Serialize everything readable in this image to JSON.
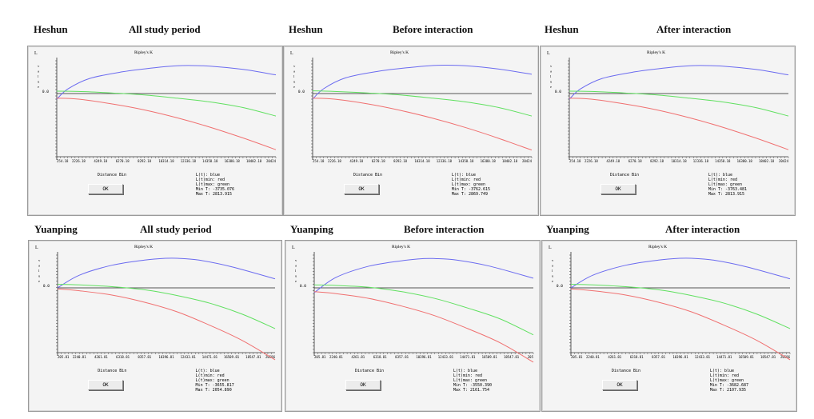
{
  "chart_data": [
    {
      "type": "line",
      "site": "Heshun",
      "period": "All study period",
      "title": "Ripley's K",
      "ylabel": "L value",
      "xlabel": "Distance Bin",
      "zero_tick": "0.0",
      "tick_labels": [
        "254.18",
        "2226.18",
        "4249.18",
        "6270.18",
        "8292.18",
        "10314.18",
        "12336.18",
        "14358.18",
        "16380.18",
        "18402.18",
        "20424"
      ],
      "legend": [
        "L(t): blue",
        "L(t)min: red",
        "L(t)max: green"
      ],
      "min_t": "-3735.076",
      "max_t": "2813.915",
      "button": "OK",
      "series": [
        {
          "name": "L(t)",
          "color": "#6b6bf0",
          "x": [
            0,
            0.05,
            0.15,
            0.3,
            0.45,
            0.55,
            0.6,
            0.7,
            0.85,
            1
          ],
          "values": [
            -0.12,
            0.15,
            0.5,
            0.72,
            0.86,
            0.92,
            0.93,
            0.91,
            0.8,
            0.62
          ]
        },
        {
          "name": "L(t)min",
          "color": "#f07070",
          "x": [
            0,
            0.1,
            0.25,
            0.4,
            0.55,
            0.7,
            0.85,
            1
          ],
          "values": [
            -0.1,
            -0.12,
            -0.22,
            -0.35,
            -0.52,
            -0.72,
            -0.95,
            -1.2
          ]
        },
        {
          "name": "L(t)max",
          "color": "#60e060",
          "x": [
            0,
            0.1,
            0.25,
            0.4,
            0.55,
            0.7,
            0.85,
            1
          ],
          "values": [
            0.08,
            0.07,
            0.02,
            -0.03,
            -0.1,
            -0.18,
            -0.3,
            -0.48
          ]
        }
      ]
    },
    {
      "type": "line",
      "site": "Heshun",
      "period": "Before interaction",
      "title": "Ripley's K",
      "ylabel": "L value",
      "xlabel": "Distance Bin",
      "zero_tick": "0.0",
      "tick_labels": [
        "254.18",
        "2226.18",
        "4249.18",
        "6270.18",
        "8292.18",
        "10314.18",
        "12336.18",
        "14358.18",
        "16380.18",
        "18402.18",
        "20424"
      ],
      "legend": [
        "L(t): blue",
        "L(t)min: red",
        "L(t)max: green"
      ],
      "min_t": "-3762.615",
      "max_t": "2869.749",
      "button": "OK",
      "series": [
        {
          "name": "L(t)",
          "color": "#6b6bf0",
          "x": [
            0,
            0.05,
            0.15,
            0.3,
            0.45,
            0.55,
            0.6,
            0.7,
            0.85,
            1
          ],
          "values": [
            -0.12,
            0.16,
            0.52,
            0.74,
            0.87,
            0.93,
            0.94,
            0.92,
            0.81,
            0.64
          ]
        },
        {
          "name": "L(t)min",
          "color": "#f07070",
          "x": [
            0,
            0.1,
            0.25,
            0.4,
            0.55,
            0.7,
            0.85,
            1
          ],
          "values": [
            -0.1,
            -0.12,
            -0.22,
            -0.36,
            -0.53,
            -0.73,
            -0.96,
            -1.21
          ]
        },
        {
          "name": "L(t)max",
          "color": "#60e060",
          "x": [
            0,
            0.1,
            0.25,
            0.4,
            0.55,
            0.7,
            0.85,
            1
          ],
          "values": [
            0.09,
            0.07,
            0.02,
            -0.03,
            -0.1,
            -0.18,
            -0.3,
            -0.48
          ]
        }
      ]
    },
    {
      "type": "line",
      "site": "Heshun",
      "period": "After interaction",
      "title": "Ripley's K",
      "ylabel": "L value",
      "xlabel": "Distance Bin",
      "zero_tick": "0.0",
      "tick_labels": [
        "254.18",
        "2226.18",
        "4249.18",
        "6270.18",
        "8292.18",
        "10314.18",
        "12336.18",
        "14358.18",
        "16380.18",
        "18402.18",
        "20424"
      ],
      "legend": [
        "L(t): blue",
        "L(t)min: red",
        "L(t)max: green"
      ],
      "min_t": "-3763.481",
      "max_t": "2813.915",
      "button": "OK",
      "series": [
        {
          "name": "L(t)",
          "color": "#6b6bf0",
          "x": [
            0,
            0.05,
            0.15,
            0.3,
            0.45,
            0.55,
            0.6,
            0.7,
            0.85,
            1
          ],
          "values": [
            -0.12,
            0.15,
            0.5,
            0.72,
            0.86,
            0.92,
            0.93,
            0.91,
            0.8,
            0.62
          ]
        },
        {
          "name": "L(t)min",
          "color": "#f07070",
          "x": [
            0,
            0.1,
            0.25,
            0.4,
            0.55,
            0.7,
            0.85,
            1
          ],
          "values": [
            -0.1,
            -0.12,
            -0.22,
            -0.35,
            -0.52,
            -0.72,
            -0.95,
            -1.2
          ]
        },
        {
          "name": "L(t)max",
          "color": "#60e060",
          "x": [
            0,
            0.1,
            0.25,
            0.4,
            0.55,
            0.7,
            0.85,
            1
          ],
          "values": [
            0.08,
            0.07,
            0.02,
            -0.03,
            -0.1,
            -0.18,
            -0.3,
            -0.48
          ]
        }
      ]
    },
    {
      "type": "line",
      "site": "Yuanping",
      "period": "All study period",
      "title": "Ripley's K",
      "ylabel": "L value",
      "xlabel": "Distance Bin",
      "zero_tick": "0.0",
      "tick_labels": [
        "205.81",
        "2240.81",
        "4261.81",
        "6318.81",
        "8357.81",
        "10396.81",
        "12433.81",
        "14471.81",
        "16509.81",
        "18547.81",
        "20586"
      ],
      "legend": [
        "L(t): blue",
        "L(t)min: red",
        "L(t)max: green"
      ],
      "min_t": "-3655.817",
      "max_t": "2054.890",
      "button": "OK",
      "series": [
        {
          "name": "L(t)",
          "color": "#6b6bf0",
          "x": [
            0,
            0.1,
            0.25,
            0.4,
            0.5,
            0.55,
            0.65,
            0.8,
            1
          ],
          "values": [
            0.0,
            0.42,
            0.75,
            0.92,
            0.98,
            0.98,
            0.92,
            0.7,
            0.3
          ]
        },
        {
          "name": "L(t)min",
          "color": "#f07070",
          "x": [
            0,
            0.1,
            0.25,
            0.4,
            0.55,
            0.7,
            0.85,
            1
          ],
          "values": [
            -0.02,
            -0.06,
            -0.15,
            -0.3,
            -0.5,
            -0.78,
            -1.1,
            -1.5
          ]
        },
        {
          "name": "L(t)max",
          "color": "#60e060",
          "x": [
            0,
            0.1,
            0.25,
            0.4,
            0.55,
            0.7,
            0.85,
            1
          ],
          "values": [
            0.12,
            0.1,
            0.04,
            -0.04,
            -0.16,
            -0.32,
            -0.55,
            -0.85
          ]
        }
      ]
    },
    {
      "type": "line",
      "site": "Yuanping",
      "period": "Before interaction",
      "title": "Ripley's K",
      "ylabel": "L value",
      "xlabel": "Distance Bin",
      "zero_tick": "0.0",
      "tick_labels": [
        "205.81",
        "2240.81",
        "4261.81",
        "6318.81",
        "8357.81",
        "10396.81",
        "12433.81",
        "14471.81",
        "16509.81",
        "18547.81",
        "205"
      ],
      "legend": [
        "L(t): blue",
        "L(t)min: red",
        "L(t)max: green"
      ],
      "min_t": "-3550.390",
      "max_t": "2161.754",
      "button": "OK",
      "series": [
        {
          "name": "L(t)",
          "color": "#6b6bf0",
          "x": [
            0,
            0.1,
            0.25,
            0.4,
            0.5,
            0.55,
            0.65,
            0.8,
            1
          ],
          "values": [
            -0.1,
            0.35,
            0.72,
            0.9,
            0.97,
            0.97,
            0.92,
            0.72,
            0.32
          ]
        },
        {
          "name": "L(t)min",
          "color": "#f07070",
          "x": [
            0,
            0.1,
            0.25,
            0.4,
            0.55,
            0.7,
            0.85,
            1
          ],
          "values": [
            -0.08,
            -0.12,
            -0.22,
            -0.38,
            -0.58,
            -0.85,
            -1.15,
            -1.55
          ]
        },
        {
          "name": "L(t)max",
          "color": "#60e060",
          "x": [
            0,
            0.1,
            0.25,
            0.4,
            0.55,
            0.7,
            0.85,
            1
          ],
          "values": [
            0.1,
            0.08,
            0.02,
            -0.08,
            -0.22,
            -0.42,
            -0.65,
            -0.98
          ]
        }
      ]
    },
    {
      "type": "line",
      "site": "Yuanping",
      "period": "After interaction",
      "title": "Ripley's K",
      "ylabel": "L value",
      "xlabel": "Distance Bin",
      "zero_tick": "0.0",
      "tick_labels": [
        "205.81",
        "2240.81",
        "4261.81",
        "6318.81",
        "8357.81",
        "10396.81",
        "12433.81",
        "14471.81",
        "16509.81",
        "18547.81",
        "20586"
      ],
      "legend": [
        "L(t): blue",
        "L(t)min: red",
        "L(t)max: green"
      ],
      "min_t": "-3682.687",
      "max_t": "2107.935",
      "button": "OK",
      "series": [
        {
          "name": "L(t)",
          "color": "#6b6bf0",
          "x": [
            0,
            0.1,
            0.25,
            0.4,
            0.5,
            0.55,
            0.65,
            0.8,
            1
          ],
          "values": [
            0.0,
            0.42,
            0.75,
            0.92,
            0.98,
            0.98,
            0.92,
            0.7,
            0.3
          ]
        },
        {
          "name": "L(t)min",
          "color": "#f07070",
          "x": [
            0,
            0.1,
            0.25,
            0.4,
            0.55,
            0.7,
            0.85,
            1
          ],
          "values": [
            -0.02,
            -0.06,
            -0.15,
            -0.3,
            -0.5,
            -0.78,
            -1.1,
            -1.5
          ]
        },
        {
          "name": "L(t)max",
          "color": "#60e060",
          "x": [
            0,
            0.1,
            0.25,
            0.4,
            0.55,
            0.7,
            0.85,
            1
          ],
          "values": [
            0.12,
            0.1,
            0.04,
            -0.04,
            -0.16,
            -0.32,
            -0.55,
            -0.85
          ]
        }
      ]
    }
  ]
}
